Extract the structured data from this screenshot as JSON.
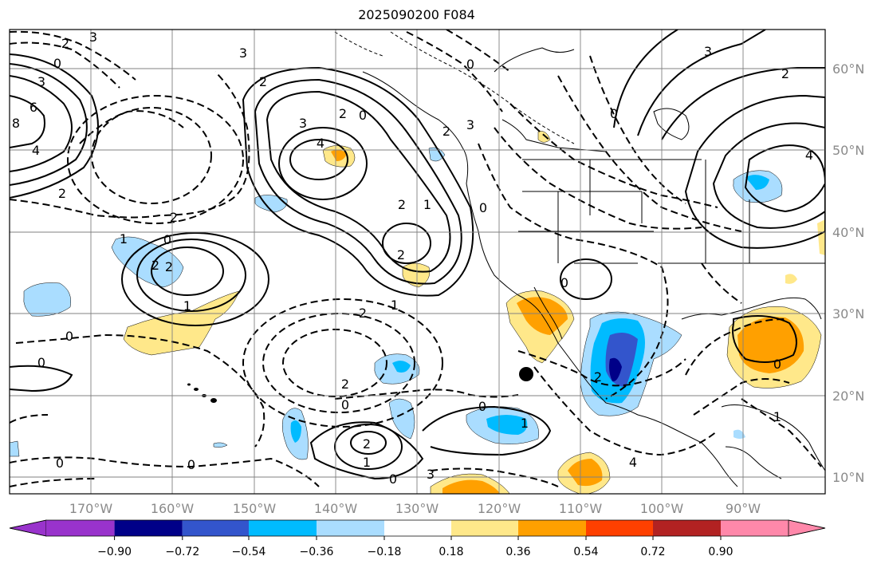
{
  "title": "2025090200 F084",
  "map": {
    "lon_labels": [
      "170°W",
      "160°W",
      "150°W",
      "140°W",
      "130°W",
      "120°W",
      "110°W",
      "100°W",
      "90°W"
    ],
    "lat_labels": [
      "60°N",
      "50°N",
      "40°N",
      "30°N",
      "20°N",
      "10°N"
    ],
    "marker": "storm-position-dot"
  },
  "colorbar": {
    "tick_labels": [
      "−0.90",
      "−0.72",
      "−0.54",
      "−0.36",
      "−0.18",
      "0.18",
      "0.36",
      "0.54",
      "0.72",
      "0.90"
    ],
    "colors": [
      "#9933cc",
      "#000088",
      "#3355cc",
      "#00bbff",
      "#aaddff",
      "#ffffff",
      "#ffe88a",
      "#ffa000",
      "#ff4000",
      "#b22222",
      "#ff88aa"
    ]
  },
  "contour_labels": [
    "2",
    "3",
    "0",
    "3",
    "6",
    "8",
    "4",
    "2",
    "3",
    "2",
    "0",
    "3",
    "4",
    "2",
    "0",
    "2",
    "3",
    "2",
    "0",
    "1",
    "2",
    "2",
    "1",
    "1",
    "2",
    "0",
    "2",
    "0",
    "2",
    "0",
    "2",
    "1",
    "0",
    "0",
    "0",
    "2",
    "0",
    "1",
    "0",
    "0",
    "4",
    "3",
    "0",
    "2",
    "1",
    "1",
    "0",
    "2",
    "4",
    "3"
  ]
}
